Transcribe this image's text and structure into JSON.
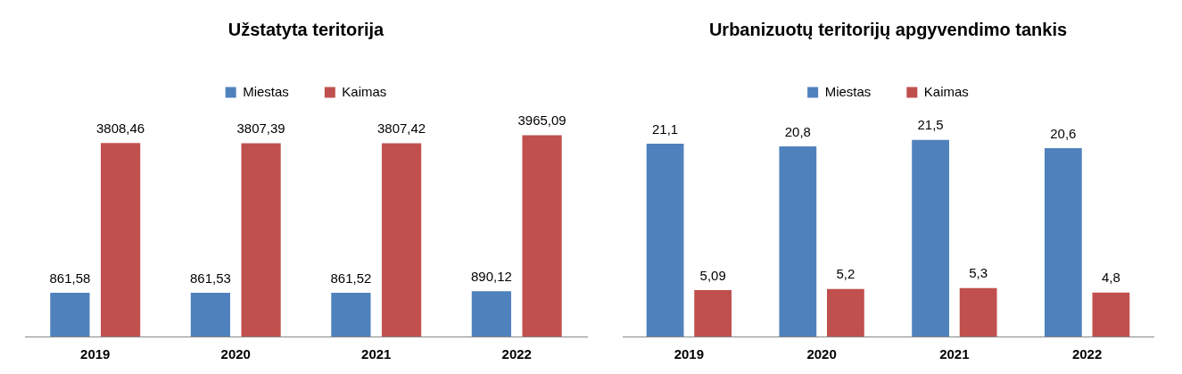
{
  "chart_data": [
    {
      "type": "bar",
      "title": "Užstatyta teritorija",
      "categories": [
        "2019",
        "2020",
        "2021",
        "2022"
      ],
      "legend": "top",
      "grid": false,
      "series": [
        {
          "name": "Miestas",
          "color": "#4f81bd",
          "values": [
            861.58,
            861.53,
            861.52,
            890.12
          ],
          "value_labels": [
            "861,58",
            "861,53",
            "861,52",
            "890,12"
          ]
        },
        {
          "name": "Kaimas",
          "color": "#c0504d",
          "values": [
            3808.46,
            3807.39,
            3807.42,
            3965.09
          ],
          "value_labels": [
            "3808,46",
            "3807,39",
            "3807,42",
            "3965,09"
          ]
        }
      ]
    },
    {
      "type": "bar",
      "title": "Urbanizuotų teritorijų apgyvendimo tankis",
      "categories": [
        "2019",
        "2020",
        "2021",
        "2022"
      ],
      "legend": "top",
      "grid": false,
      "series": [
        {
          "name": "Miestas",
          "color": "#4f81bd",
          "values": [
            21.1,
            20.8,
            21.5,
            20.6
          ],
          "value_labels": [
            "21,1",
            "20,8",
            "21,5",
            "20,6"
          ]
        },
        {
          "name": "Kaimas",
          "color": "#c0504d",
          "values": [
            5.09,
            5.2,
            5.3,
            4.8
          ],
          "value_labels": [
            "5,09",
            "5,2",
            "5,3",
            "4,8"
          ]
        }
      ]
    }
  ]
}
